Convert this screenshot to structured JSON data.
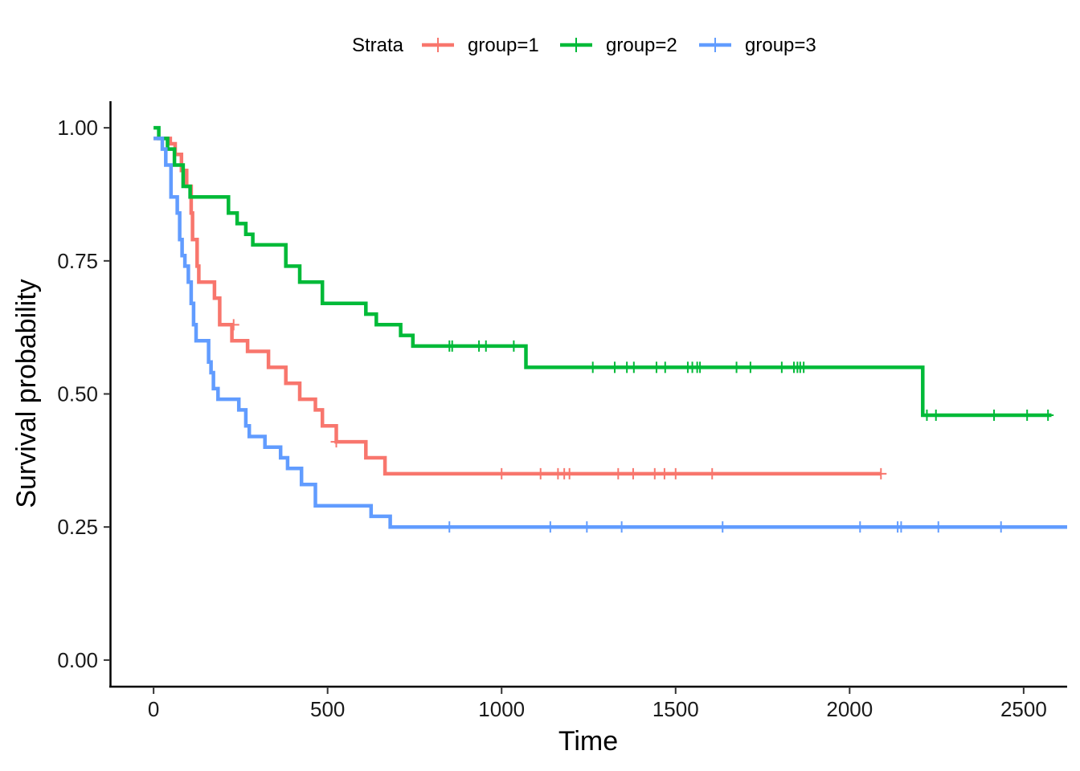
{
  "chart_data": {
    "type": "line",
    "step": true,
    "xlabel": "Time",
    "ylabel": "Survival probability",
    "xlim": [
      -125,
      2625
    ],
    "ylim": [
      -0.05,
      1.05
    ],
    "x_ticks": [
      0,
      500,
      1000,
      1500,
      2000,
      2500
    ],
    "x_tick_labels": [
      "0",
      "500",
      "1000",
      "1500",
      "2000",
      "2500"
    ],
    "y_ticks": [
      0,
      0.25,
      0.5,
      0.75,
      1
    ],
    "y_tick_labels": [
      "0.00",
      "0.25",
      "0.50",
      "0.75",
      "1.00"
    ],
    "grid": false,
    "legend": {
      "title": "Strata",
      "position": "top"
    },
    "series": [
      {
        "name": "group=1",
        "color": "#F8766D",
        "steps": [
          [
            0,
            0.98
          ],
          [
            48,
            0.97
          ],
          [
            62,
            0.95
          ],
          [
            80,
            0.92
          ],
          [
            95,
            0.89
          ],
          [
            108,
            0.84
          ],
          [
            112,
            0.79
          ],
          [
            125,
            0.74
          ],
          [
            130,
            0.71
          ],
          [
            175,
            0.68
          ],
          [
            190,
            0.63
          ],
          [
            225,
            0.6
          ],
          [
            270,
            0.58
          ],
          [
            330,
            0.55
          ],
          [
            380,
            0.52
          ],
          [
            420,
            0.49
          ],
          [
            465,
            0.47
          ],
          [
            485,
            0.44
          ],
          [
            525,
            0.41
          ],
          [
            610,
            0.38
          ],
          [
            665,
            0.35
          ],
          [
            2090,
            0.35
          ]
        ],
        "censored": [
          [
            230,
            0.63
          ],
          [
            525,
            0.41
          ],
          [
            1000,
            0.35
          ],
          [
            1112,
            0.35
          ],
          [
            1162,
            0.35
          ],
          [
            1180,
            0.35
          ],
          [
            1195,
            0.35
          ],
          [
            1335,
            0.35
          ],
          [
            1378,
            0.35
          ],
          [
            1440,
            0.35
          ],
          [
            1468,
            0.35
          ],
          [
            1500,
            0.35
          ],
          [
            1605,
            0.35
          ],
          [
            2090,
            0.35
          ]
        ]
      },
      {
        "name": "group=2",
        "color": "#00BA38",
        "steps": [
          [
            0,
            1.0
          ],
          [
            15,
            0.98
          ],
          [
            40,
            0.96
          ],
          [
            60,
            0.93
          ],
          [
            85,
            0.89
          ],
          [
            105,
            0.87
          ],
          [
            215,
            0.84
          ],
          [
            240,
            0.82
          ],
          [
            265,
            0.8
          ],
          [
            285,
            0.78
          ],
          [
            380,
            0.74
          ],
          [
            420,
            0.71
          ],
          [
            485,
            0.67
          ],
          [
            610,
            0.65
          ],
          [
            640,
            0.63
          ],
          [
            710,
            0.61
          ],
          [
            745,
            0.59
          ],
          [
            1070,
            0.55
          ],
          [
            2210,
            0.46
          ],
          [
            2580,
            0.46
          ]
        ],
        "censored": [
          [
            850,
            0.59
          ],
          [
            858,
            0.59
          ],
          [
            935,
            0.59
          ],
          [
            955,
            0.59
          ],
          [
            1035,
            0.59
          ],
          [
            1262,
            0.55
          ],
          [
            1325,
            0.55
          ],
          [
            1360,
            0.55
          ],
          [
            1380,
            0.55
          ],
          [
            1445,
            0.55
          ],
          [
            1470,
            0.55
          ],
          [
            1535,
            0.55
          ],
          [
            1548,
            0.55
          ],
          [
            1562,
            0.55
          ],
          [
            1570,
            0.55
          ],
          [
            1675,
            0.55
          ],
          [
            1715,
            0.55
          ],
          [
            1805,
            0.55
          ],
          [
            1840,
            0.55
          ],
          [
            1850,
            0.55
          ],
          [
            1858,
            0.55
          ],
          [
            1868,
            0.55
          ],
          [
            2222,
            0.46
          ],
          [
            2248,
            0.46
          ],
          [
            2415,
            0.46
          ],
          [
            2510,
            0.46
          ],
          [
            2570,
            0.46
          ]
        ]
      },
      {
        "name": "group=3",
        "color": "#619CFF",
        "steps": [
          [
            0,
            0.98
          ],
          [
            25,
            0.96
          ],
          [
            35,
            0.93
          ],
          [
            50,
            0.87
          ],
          [
            68,
            0.84
          ],
          [
            75,
            0.79
          ],
          [
            82,
            0.76
          ],
          [
            90,
            0.74
          ],
          [
            100,
            0.71
          ],
          [
            108,
            0.67
          ],
          [
            115,
            0.63
          ],
          [
            122,
            0.6
          ],
          [
            158,
            0.56
          ],
          [
            165,
            0.54
          ],
          [
            172,
            0.51
          ],
          [
            185,
            0.49
          ],
          [
            245,
            0.47
          ],
          [
            265,
            0.44
          ],
          [
            275,
            0.42
          ],
          [
            320,
            0.4
          ],
          [
            365,
            0.38
          ],
          [
            385,
            0.36
          ],
          [
            425,
            0.33
          ],
          [
            465,
            0.29
          ],
          [
            625,
            0.27
          ],
          [
            680,
            0.25
          ],
          [
            2625,
            0.25
          ]
        ],
        "censored": [
          [
            850,
            0.25
          ],
          [
            1140,
            0.25
          ],
          [
            1245,
            0.25
          ],
          [
            1345,
            0.25
          ],
          [
            1635,
            0.25
          ],
          [
            2030,
            0.25
          ],
          [
            2138,
            0.25
          ],
          [
            2148,
            0.25
          ],
          [
            2255,
            0.25
          ],
          [
            2435,
            0.25
          ]
        ]
      }
    ]
  }
}
